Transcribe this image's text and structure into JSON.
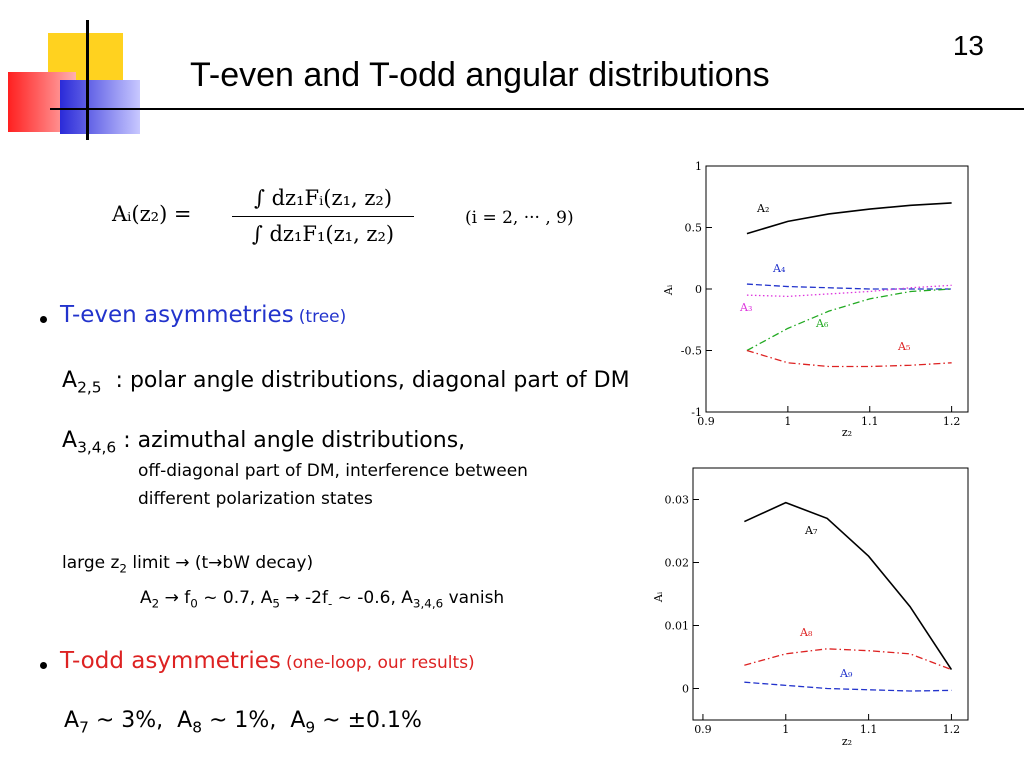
{
  "slide": {
    "page_number": "13",
    "title": "T-even and T-odd angular distributions"
  },
  "formula": {
    "lhs": "Aᵢ(z₂) =",
    "numerator": "∫ dz₁Fᵢ(z₁, z₂)",
    "denominator": "∫ dz₁F₁(z₁, z₂)",
    "condition": "(i = 2, ··· , 9)"
  },
  "t_even": {
    "heading": "T-even asymmetries",
    "note": "(tree)",
    "item1": [
      "A",
      "2,5",
      "  : polar angle distributions, diagonal part of DM"
    ],
    "item2": [
      "A",
      "3,4,6",
      " : azimuthal angle distributions,"
    ],
    "item2_lines": [
      "off-diagonal part of DM, interference between",
      "different polarization states"
    ],
    "limit": [
      "large z",
      "2",
      " limit → (t→bW decay)"
    ],
    "limit_detail": [
      "A",
      "2",
      " → f",
      "0",
      " ~ 0.7, A",
      "5",
      " → -2f",
      "-",
      " ~ -0.6, A",
      "3,4,6",
      " vanish"
    ]
  },
  "t_odd": {
    "heading": "T-odd asymmetries",
    "note": "(one-loop, our results)",
    "result": [
      "A",
      "7",
      " ~ 3%,  A",
      "8",
      " ~ 1%,  A",
      "9",
      " ~ ±0.1%"
    ]
  },
  "chart_data": [
    {
      "type": "line",
      "xlabel": "z₂",
      "ylabel": "Aᵢ",
      "x": [
        0.95,
        1.0,
        1.05,
        1.1,
        1.15,
        1.2
      ],
      "xlim": [
        0.9,
        1.22
      ],
      "xticks": [
        0.9,
        1,
        1.1,
        1.2
      ],
      "ylim": [
        -1,
        1
      ],
      "yticks": [
        -1,
        -0.5,
        0,
        0.5,
        1
      ],
      "series": [
        {
          "name": "A₂",
          "color": "#000000",
          "style": "solid",
          "values": [
            0.45,
            0.55,
            0.61,
            0.65,
            0.68,
            0.7
          ]
        },
        {
          "name": "A₄",
          "color": "#2233cc",
          "style": "dashed",
          "values": [
            0.04,
            0.02,
            0.01,
            0.0,
            0.0,
            0.0
          ]
        },
        {
          "name": "A₃",
          "color": "#dd33dd",
          "style": "dotted",
          "values": [
            -0.05,
            -0.06,
            -0.04,
            -0.02,
            0.01,
            0.03
          ]
        },
        {
          "name": "A₆",
          "color": "#22aa22",
          "style": "dashdot",
          "values": [
            -0.5,
            -0.32,
            -0.18,
            -0.08,
            -0.02,
            0.0
          ]
        },
        {
          "name": "A₅",
          "color": "#dd2222",
          "style": "dashdot",
          "values": [
            -0.5,
            -0.6,
            -0.63,
            -0.63,
            -0.62,
            -0.6
          ]
        }
      ]
    },
    {
      "type": "line",
      "xlabel": "z₂",
      "ylabel": "Aᵢ",
      "x": [
        0.95,
        1.0,
        1.05,
        1.1,
        1.15,
        1.2
      ],
      "xlim": [
        0.888,
        1.22
      ],
      "xticks": [
        0.9,
        1,
        1.1,
        1.2
      ],
      "ylim": [
        -0.005,
        0.035
      ],
      "yticks": [
        0,
        0.01,
        0.02,
        0.03
      ],
      "series": [
        {
          "name": "A₇",
          "color": "#000000",
          "style": "solid",
          "values": [
            0.0265,
            0.0295,
            0.027,
            0.021,
            0.013,
            0.003
          ]
        },
        {
          "name": "A₈",
          "color": "#dd2222",
          "style": "dashdot",
          "values": [
            0.0037,
            0.0055,
            0.0063,
            0.006,
            0.0055,
            0.003
          ]
        },
        {
          "name": "A₉",
          "color": "#2233cc",
          "style": "dashed",
          "values": [
            0.001,
            0.0005,
            0.0,
            -0.0002,
            -0.0004,
            -0.0003
          ]
        }
      ]
    }
  ]
}
